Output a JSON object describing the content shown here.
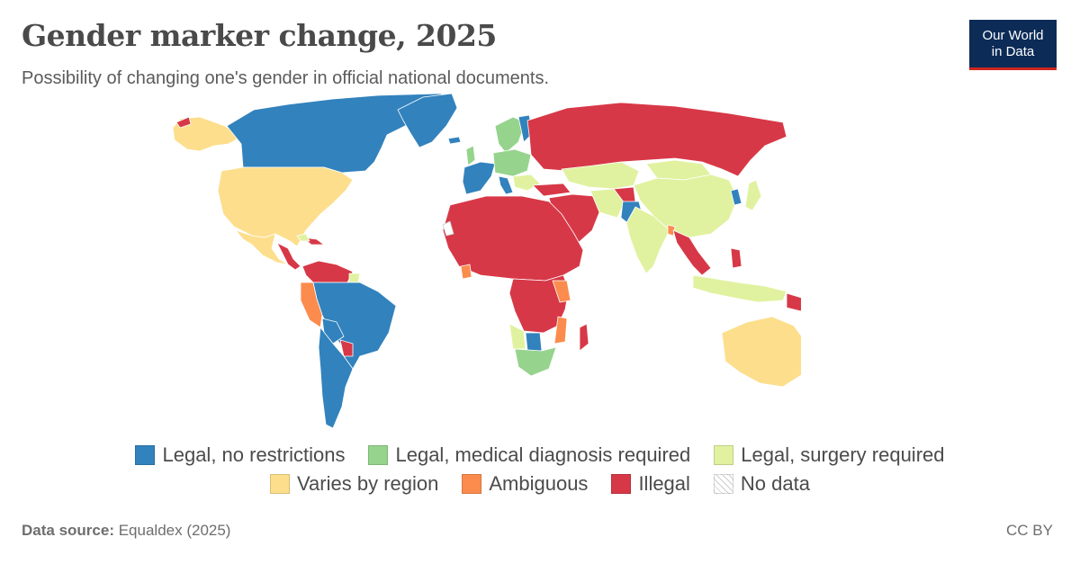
{
  "header": {
    "title": "Gender marker change, 2025",
    "subtitle": "Possibility of changing one's gender in official national documents."
  },
  "logo": {
    "line1": "Our World",
    "line2": "in Data"
  },
  "colors": {
    "legal_no_restrictions": "#3282bd",
    "legal_medical_diagnosis": "#96d48d",
    "legal_surgery": "#e0f2a0",
    "varies_by_region": "#fdde8c",
    "ambiguous": "#fb8c4e",
    "illegal": "#d73847",
    "no_data": "#ffffff",
    "brand": "#0c2b57",
    "brand_accent": "#ce261e"
  },
  "legend": {
    "row1": [
      {
        "label": "Legal, no restrictions",
        "color": "#3282bd"
      },
      {
        "label": "Legal, medical diagnosis required",
        "color": "#96d48d"
      },
      {
        "label": "Legal, surgery required",
        "color": "#e0f2a0"
      }
    ],
    "row2": [
      {
        "label": "Varies by region",
        "color": "#fdde8c"
      },
      {
        "label": "Ambiguous",
        "color": "#fb8c4e"
      },
      {
        "label": "Illegal",
        "color": "#d73847"
      },
      {
        "label": "No data",
        "color": "hatch"
      }
    ]
  },
  "footer": {
    "source_label": "Data source:",
    "source_value": "Equaldex (2025)",
    "license": "CC BY"
  }
}
